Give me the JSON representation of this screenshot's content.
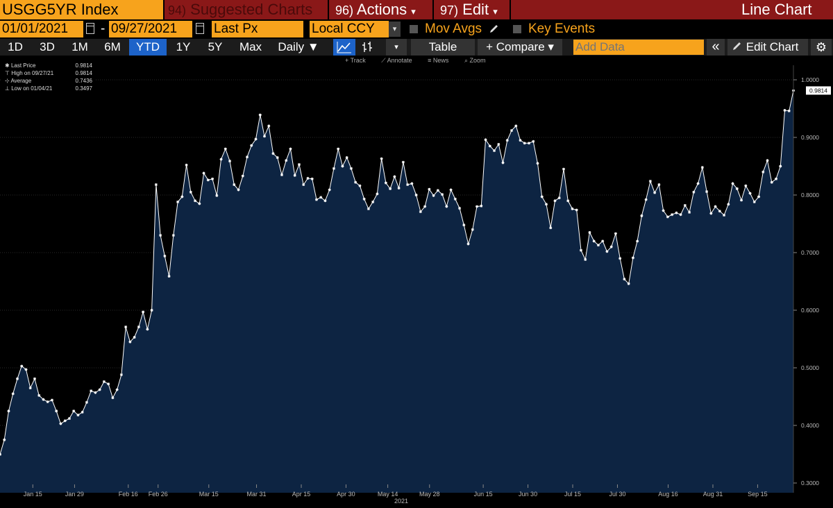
{
  "header": {
    "ticker": "USGG5YR Index",
    "suggested": {
      "num": "94)",
      "label": "Suggested Charts"
    },
    "actions": {
      "num": "96)",
      "label": "Actions",
      "caret": "▾"
    },
    "edit": {
      "num": "97)",
      "label": "Edit",
      "caret": "▾"
    },
    "chart_kind": "Line Chart"
  },
  "options": {
    "start_date": "01/01/2021",
    "dash": "-",
    "end_date": "09/27/2021",
    "field": "Last Px",
    "currency": "Local CCY",
    "dropdown_caret": "▾",
    "mov_avgs": "Mov Avgs",
    "key_events": "Key Events"
  },
  "toolbar": {
    "ranges": [
      "1D",
      "3D",
      "1M",
      "6M",
      "YTD",
      "1Y",
      "5Y",
      "Max"
    ],
    "active_range": "YTD",
    "frequency": "Daily ▼",
    "table": "Table",
    "compare": "+ Compare ▾",
    "add_data_placeholder": "Add Data",
    "collapse": "«",
    "edit_chart": "Edit Chart",
    "settings_icon": "gear-icon"
  },
  "subtools": {
    "track": "Track",
    "annotate": "Annotate",
    "news": "News",
    "zoom": "Zoom"
  },
  "legend": [
    {
      "label": "Last Price",
      "value": "0.9814"
    },
    {
      "label": "High on 09/27/21",
      "value": "0.9814"
    },
    {
      "label": "Average",
      "value": "0.7436"
    },
    {
      "label": "Low on 01/04/21",
      "value": "0.3497"
    }
  ],
  "colors": {
    "accent": "#f7a31c",
    "header": "#8a1818",
    "fill": "#0d2442",
    "line": "#ffffff",
    "active": "#1d63c9"
  },
  "chart_data": {
    "type": "area",
    "x_start": "2021-01-04",
    "x_end": "2021-09-27",
    "x_tick_labels": [
      "Jan 15",
      "Jan 29",
      "Feb 16",
      "Feb 26",
      "Mar 15",
      "Mar 31",
      "Apr 15",
      "Apr 30",
      "May 14",
      "May 28",
      "Jun 15",
      "Jun 30",
      "Jul 15",
      "Jul 30",
      "Aug 16",
      "Aug 31",
      "Sep 15"
    ],
    "x_tick_dates": [
      "2021-01-15",
      "2021-01-29",
      "2021-02-16",
      "2021-02-26",
      "2021-03-15",
      "2021-03-31",
      "2021-04-15",
      "2021-04-30",
      "2021-05-14",
      "2021-05-28",
      "2021-06-15",
      "2021-06-30",
      "2021-07-15",
      "2021-07-30",
      "2021-08-16",
      "2021-08-31",
      "2021-09-15"
    ],
    "year_label": "2021",
    "ylim": [
      0.3,
      1.0
    ],
    "y_ticks": [
      "1.0000",
      "0.9000",
      "0.8000",
      "0.7000",
      "0.6000",
      "0.5000",
      "0.4000",
      "0.3000"
    ],
    "y_axis_side": "right",
    "last_value_label": "0.9814",
    "values": [
      0.3497,
      0.375,
      0.425,
      0.455,
      0.481,
      0.503,
      0.497,
      0.465,
      0.481,
      0.452,
      0.445,
      0.441,
      0.444,
      0.425,
      0.403,
      0.408,
      0.412,
      0.425,
      0.418,
      0.423,
      0.44,
      0.46,
      0.457,
      0.462,
      0.476,
      0.472,
      0.448,
      0.462,
      0.488,
      0.571,
      0.545,
      0.553,
      0.571,
      0.597,
      0.567,
      0.6,
      0.818,
      0.73,
      0.694,
      0.659,
      0.73,
      0.788,
      0.797,
      0.852,
      0.805,
      0.79,
      0.785,
      0.838,
      0.826,
      0.828,
      0.799,
      0.862,
      0.88,
      0.859,
      0.818,
      0.809,
      0.833,
      0.866,
      0.886,
      0.897,
      0.939,
      0.902,
      0.92,
      0.872,
      0.865,
      0.835,
      0.86,
      0.88,
      0.834,
      0.853,
      0.818,
      0.829,
      0.828,
      0.792,
      0.796,
      0.79,
      0.809,
      0.846,
      0.88,
      0.85,
      0.865,
      0.846,
      0.822,
      0.816,
      0.793,
      0.776,
      0.788,
      0.802,
      0.863,
      0.821,
      0.811,
      0.832,
      0.812,
      0.857,
      0.818,
      0.82,
      0.8,
      0.771,
      0.78,
      0.81,
      0.799,
      0.808,
      0.801,
      0.78,
      0.809,
      0.793,
      0.777,
      0.748,
      0.715,
      0.74,
      0.78,
      0.781,
      0.896,
      0.885,
      0.877,
      0.888,
      0.856,
      0.895,
      0.912,
      0.92,
      0.895,
      0.89,
      0.89,
      0.893,
      0.855,
      0.797,
      0.784,
      0.743,
      0.79,
      0.795,
      0.845,
      0.79,
      0.776,
      0.774,
      0.704,
      0.688,
      0.735,
      0.72,
      0.713,
      0.72,
      0.702,
      0.71,
      0.733,
      0.69,
      0.654,
      0.646,
      0.691,
      0.72,
      0.764,
      0.792,
      0.824,
      0.804,
      0.818,
      0.773,
      0.762,
      0.766,
      0.769,
      0.766,
      0.782,
      0.77,
      0.805,
      0.82,
      0.848,
      0.806,
      0.768,
      0.78,
      0.772,
      0.765,
      0.784,
      0.82,
      0.811,
      0.791,
      0.816,
      0.803,
      0.788,
      0.797,
      0.84,
      0.86,
      0.822,
      0.828,
      0.85,
      0.947,
      0.946,
      0.9814
    ]
  }
}
